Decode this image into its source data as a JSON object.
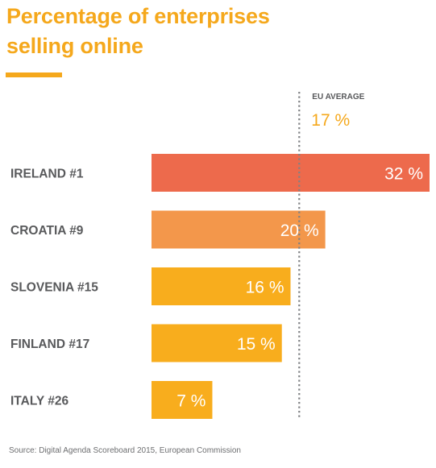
{
  "title_line1": "Percentage of enterprises",
  "title_line2": "selling online",
  "source": "Source: Digital Agenda Scoreboard 2015, European Commission",
  "colors": {
    "accent": "#f5a81c",
    "label_text": "#58595b",
    "value_text": "#ffffff",
    "average_line": "#808285"
  },
  "chart_data": {
    "type": "bar",
    "orientation": "horizontal",
    "categories": [
      "IRELAND #1",
      "CROATIA #9",
      "SLOVENIA #15",
      "FINLAND #17",
      "ITALY #26"
    ],
    "values": [
      32,
      20,
      16,
      15,
      7
    ],
    "value_labels": [
      "32 %",
      "20 %",
      "16 %",
      "15 %",
      "7 %"
    ],
    "bar_colors": [
      "#ed6a4c",
      "#f3974b",
      "#f8ad1d",
      "#f8ad1d",
      "#f8ad1d"
    ],
    "xlim": [
      0,
      32
    ],
    "reference_line": {
      "label": "EU AVERAGE",
      "value": 17,
      "value_label": "17 %"
    },
    "grid": false
  }
}
